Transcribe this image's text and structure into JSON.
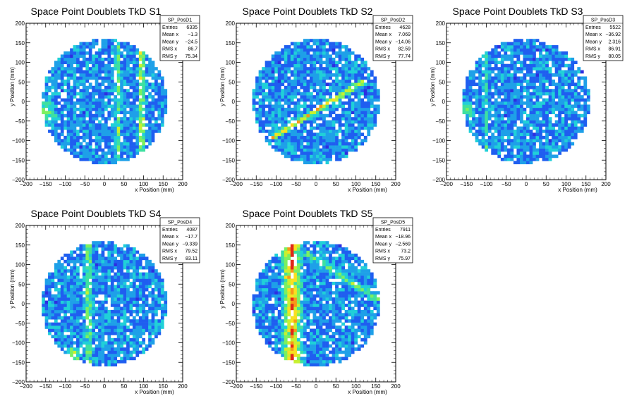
{
  "chart_data": [
    {
      "type": "heatmap",
      "title": "Space Point Doublets TkD S1",
      "xlabel": "x Position (mm)",
      "ylabel": "y Position (mm)",
      "xlim": [
        -200,
        200
      ],
      "ylim": [
        -200,
        200
      ],
      "xticks": [
        -200,
        -150,
        -100,
        -50,
        0,
        50,
        100,
        150,
        200
      ],
      "yticks": [
        -200,
        -150,
        -100,
        -50,
        0,
        50,
        100,
        150,
        200
      ],
      "bin_size_mm": 8,
      "active_radius_mm": 160,
      "stats": {
        "name": "SP_PosD1",
        "rows": [
          [
            "Entries",
            "6335"
          ],
          [
            "Mean x",
            "−1.3"
          ],
          [
            "Mean y",
            "−24.5"
          ],
          [
            "RMS x",
            "86.7"
          ],
          [
            "RMS y",
            "75.34"
          ]
        ]
      },
      "features": [
        {
          "kind": "vertical-band",
          "x_mm": 95,
          "width_mm": 12,
          "strength": 0.45
        },
        {
          "kind": "vertical-band",
          "x_mm": 35,
          "width_mm": 10,
          "strength": 0.3
        },
        {
          "kind": "hotspot",
          "x_mm": -150,
          "y_mm": -25,
          "radius_mm": 35,
          "strength": 0.45
        }
      ]
    },
    {
      "type": "heatmap",
      "title": "Space Point Doublets TkD S2",
      "xlabel": "x Position (mm)",
      "ylabel": "y Position (mm)",
      "xlim": [
        -200,
        200
      ],
      "ylim": [
        -200,
        200
      ],
      "xticks": [
        -200,
        -150,
        -100,
        -50,
        0,
        50,
        100,
        150,
        200
      ],
      "yticks": [
        -200,
        -150,
        -100,
        -50,
        0,
        50,
        100,
        150,
        200
      ],
      "bin_size_mm": 8,
      "active_radius_mm": 160,
      "stats": {
        "name": "SP_PosD2",
        "rows": [
          [
            "Entries",
            "4628"
          ],
          [
            "Mean x",
            "7.069"
          ],
          [
            "Mean y",
            "−14.06"
          ],
          [
            "RMS x",
            "82.59"
          ],
          [
            "RMS y",
            "77.74"
          ]
        ]
      },
      "features": [
        {
          "kind": "diagonal-line",
          "x0_mm": -90,
          "y0_mm": -80,
          "x1_mm": 100,
          "y1_mm": 40,
          "width_mm": 10,
          "strength": 0.6
        }
      ]
    },
    {
      "type": "heatmap",
      "title": "Space Point Doublets TkD S3",
      "xlabel": "x Position (mm)",
      "ylabel": "y Position (mm)",
      "xlim": [
        -200,
        200
      ],
      "ylim": [
        -200,
        200
      ],
      "xticks": [
        -200,
        -150,
        -100,
        -50,
        0,
        50,
        100,
        150,
        200
      ],
      "yticks": [
        -200,
        -150,
        -100,
        -50,
        0,
        50,
        100,
        150,
        200
      ],
      "bin_size_mm": 8,
      "active_radius_mm": 160,
      "stats": {
        "name": "SP_PosD3",
        "rows": [
          [
            "Entries",
            "5522"
          ],
          [
            "Mean x",
            "−36.92"
          ],
          [
            "Mean y",
            "2.316"
          ],
          [
            "RMS x",
            "86.91"
          ],
          [
            "RMS y",
            "80.05"
          ]
        ]
      },
      "features": [
        {
          "kind": "hotspot",
          "x_mm": -150,
          "y_mm": -20,
          "radius_mm": 25,
          "strength": 0.45
        },
        {
          "kind": "vertical-band",
          "x_mm": -100,
          "width_mm": 10,
          "strength": 0.15
        }
      ]
    },
    {
      "type": "heatmap",
      "title": "Space Point Doublets TkD S4",
      "xlabel": "x Position (mm)",
      "ylabel": "y Position (mm)",
      "xlim": [
        -200,
        200
      ],
      "ylim": [
        -200,
        200
      ],
      "xticks": [
        -200,
        -150,
        -100,
        -50,
        0,
        50,
        100,
        150,
        200
      ],
      "yticks": [
        -200,
        -150,
        -100,
        -50,
        0,
        50,
        100,
        150,
        200
      ],
      "bin_size_mm": 8,
      "active_radius_mm": 160,
      "stats": {
        "name": "SP_PosD4",
        "rows": [
          [
            "Entries",
            "4087"
          ],
          [
            "Mean x",
            "−17.7"
          ],
          [
            "Mean y",
            "−9.339"
          ],
          [
            "RMS x",
            "79.52"
          ],
          [
            "RMS y",
            "83.11"
          ]
        ]
      },
      "features": [
        {
          "kind": "vertical-band",
          "x_mm": -40,
          "width_mm": 14,
          "strength": 0.35
        },
        {
          "kind": "hotspot",
          "x_mm": -80,
          "y_mm": -130,
          "radius_mm": 25,
          "strength": 0.5
        }
      ]
    },
    {
      "type": "heatmap",
      "title": "Space Point Doublets TkD S5",
      "xlabel": "x Position (mm)",
      "ylabel": "y Position (mm)",
      "xlim": [
        -200,
        200
      ],
      "ylim": [
        -200,
        200
      ],
      "xticks": [
        -200,
        -150,
        -100,
        -50,
        0,
        50,
        100,
        150,
        200
      ],
      "yticks": [
        -200,
        -150,
        -100,
        -50,
        0,
        50,
        100,
        150,
        200
      ],
      "bin_size_mm": 8,
      "active_radius_mm": 160,
      "stats": {
        "name": "SP_PosD5",
        "rows": [
          [
            "Entries",
            "7911"
          ],
          [
            "Mean x",
            "−18.96"
          ],
          [
            "Mean y",
            "−2.569"
          ],
          [
            "RMS x",
            "73.2"
          ],
          [
            "RMS y",
            "75.97"
          ]
        ]
      },
      "features": [
        {
          "kind": "vertical-band",
          "x_mm": -60,
          "width_mm": 30,
          "strength": 0.7
        },
        {
          "kind": "diagonal-line",
          "x0_mm": -10,
          "y0_mm": 120,
          "x1_mm": 140,
          "y1_mm": 20,
          "width_mm": 12,
          "strength": 0.3
        }
      ]
    }
  ],
  "colors": {
    "palette": [
      "#2a1aa8",
      "#2e2ee0",
      "#1f5ef0",
      "#1ea0e8",
      "#20d0d8",
      "#3ee0a0",
      "#7cf060",
      "#c8f030",
      "#f8e020",
      "#f89818",
      "#e02818"
    ],
    "frame": "#000000",
    "background": "#ffffff"
  }
}
